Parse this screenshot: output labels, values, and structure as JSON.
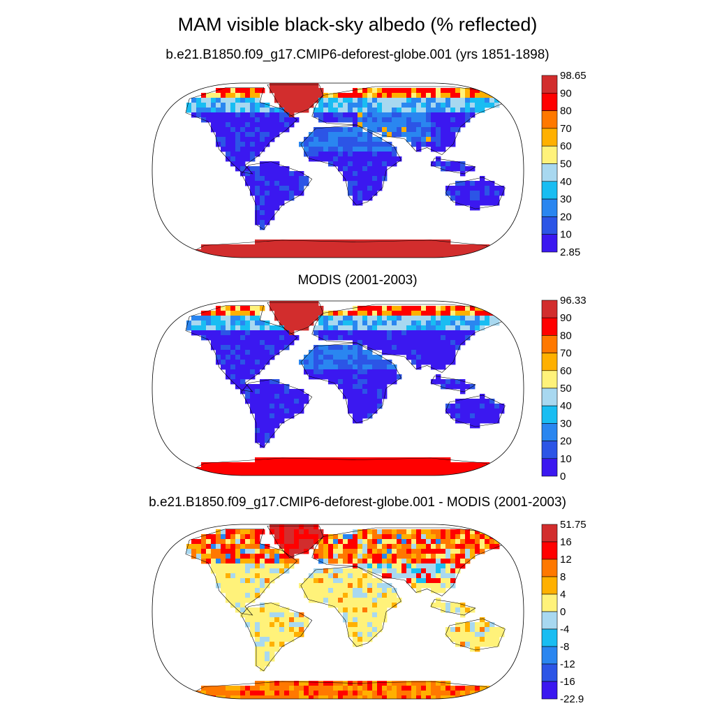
{
  "title": "MAM visible black-sky albedo (% reflected)",
  "chart_data": [
    {
      "type": "heatmap",
      "projection": "Robinson",
      "title": "b.e21.B1850.f09_g17.CMIP6-deforest-globe.001 (yrs 1851-1898)",
      "variable": "visible black-sky albedo",
      "units": "% reflected",
      "colorbar_labels": [
        "98.65",
        "90",
        "80",
        "70",
        "60",
        "50",
        "40",
        "30",
        "20",
        "10",
        "2.85"
      ],
      "colorbar_colors": [
        "#d22d2d",
        "#ff0000",
        "#ff7800",
        "#ffb000",
        "#fff27a",
        "#a8d8f0",
        "#19bdf2",
        "#2a86f0",
        "#2c55e6",
        "#3b18f0"
      ],
      "min": 2.85,
      "max": 98.65
    },
    {
      "type": "heatmap",
      "projection": "Robinson",
      "title": "MODIS (2001-2003)",
      "variable": "visible black-sky albedo",
      "units": "% reflected",
      "colorbar_labels": [
        "96.33",
        "90",
        "80",
        "70",
        "60",
        "50",
        "40",
        "30",
        "20",
        "10",
        "0"
      ],
      "colorbar_colors": [
        "#d22d2d",
        "#ff0000",
        "#ff7800",
        "#ffb000",
        "#fff27a",
        "#a8d8f0",
        "#19bdf2",
        "#2a86f0",
        "#2c55e6",
        "#3b18f0"
      ],
      "min": 0,
      "max": 96.33
    },
    {
      "type": "heatmap",
      "projection": "Robinson",
      "title": "b.e21.B1850.f09_g17.CMIP6-deforest-globe.001 - MODIS (2001-2003)",
      "variable": "albedo difference",
      "units": "% reflected",
      "colorbar_labels": [
        "51.75",
        "16",
        "12",
        "8",
        "4",
        "0",
        "-4",
        "-8",
        "-12",
        "-16",
        "-22.9"
      ],
      "colorbar_colors": [
        "#d22d2d",
        "#ff0000",
        "#ff7800",
        "#ffb000",
        "#fff27a",
        "#a8d8f0",
        "#19bdf2",
        "#2a86f0",
        "#2c55e6",
        "#3b18f0"
      ],
      "min": -22.9,
      "max": 51.75
    }
  ]
}
